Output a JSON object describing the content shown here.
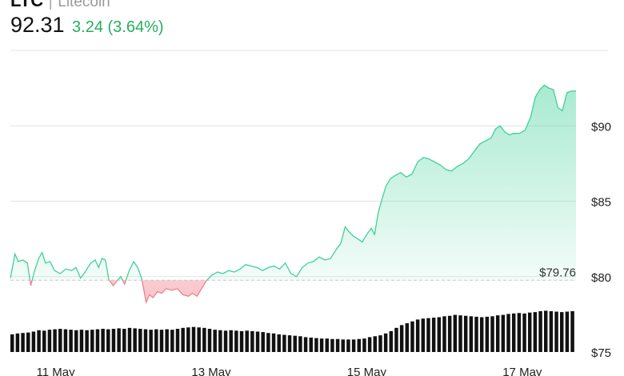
{
  "header": {
    "symbol": "LTC",
    "separator": "|",
    "name": "Litecoin",
    "price": "92.31",
    "change": "3.24 (3.64%)"
  },
  "colors": {
    "up": "#3fd199",
    "down": "#f0808a",
    "grid": "#e3e3e3",
    "volume": "#111111",
    "change_text": "#27ae60"
  },
  "chart_data": {
    "type": "area",
    "reference_value": 79.76,
    "reference_label": "$79.76",
    "ylim": [
      75,
      95
    ],
    "yticks": [
      {
        "value": 75,
        "label": "$75"
      },
      {
        "value": 80,
        "label": "$80"
      },
      {
        "value": 85,
        "label": "$85"
      },
      {
        "value": 90,
        "label": "$90"
      }
    ],
    "xticks": [
      {
        "t": 0.08,
        "label": "11 May"
      },
      {
        "t": 0.355,
        "label": "13 May"
      },
      {
        "t": 0.63,
        "label": "15 May"
      },
      {
        "t": 0.905,
        "label": "17 May"
      }
    ],
    "price_series": [
      [
        0.0,
        79.9
      ],
      [
        0.008,
        81.5
      ],
      [
        0.014,
        81.0
      ],
      [
        0.022,
        81.1
      ],
      [
        0.03,
        80.9
      ],
      [
        0.036,
        79.4
      ],
      [
        0.042,
        80.3
      ],
      [
        0.05,
        81.2
      ],
      [
        0.056,
        81.6
      ],
      [
        0.062,
        80.9
      ],
      [
        0.07,
        81.0
      ],
      [
        0.078,
        80.4
      ],
      [
        0.088,
        80.2
      ],
      [
        0.098,
        80.5
      ],
      [
        0.108,
        80.4
      ],
      [
        0.116,
        80.6
      ],
      [
        0.124,
        79.9
      ],
      [
        0.132,
        80.3
      ],
      [
        0.142,
        80.9
      ],
      [
        0.15,
        81.1
      ],
      [
        0.156,
        80.6
      ],
      [
        0.162,
        81.2
      ],
      [
        0.168,
        81.1
      ],
      [
        0.174,
        79.8
      ],
      [
        0.182,
        79.4
      ],
      [
        0.188,
        79.7
      ],
      [
        0.195,
        80.0
      ],
      [
        0.202,
        79.5
      ],
      [
        0.21,
        80.4
      ],
      [
        0.218,
        81.0
      ],
      [
        0.225,
        80.6
      ],
      [
        0.232,
        79.9
      ],
      [
        0.24,
        78.3
      ],
      [
        0.246,
        78.8
      ],
      [
        0.252,
        78.6
      ],
      [
        0.26,
        79.0
      ],
      [
        0.268,
        78.9
      ],
      [
        0.275,
        79.2
      ],
      [
        0.285,
        79.1
      ],
      [
        0.295,
        79.2
      ],
      [
        0.305,
        78.8
      ],
      [
        0.315,
        78.7
      ],
      [
        0.322,
        78.9
      ],
      [
        0.33,
        78.7
      ],
      [
        0.338,
        79.2
      ],
      [
        0.346,
        79.7
      ],
      [
        0.356,
        80.1
      ],
      [
        0.366,
        80.3
      ],
      [
        0.376,
        80.2
      ],
      [
        0.386,
        80.4
      ],
      [
        0.396,
        80.3
      ],
      [
        0.406,
        80.5
      ],
      [
        0.416,
        80.8
      ],
      [
        0.426,
        80.7
      ],
      [
        0.436,
        80.6
      ],
      [
        0.446,
        80.4
      ],
      [
        0.456,
        80.6
      ],
      [
        0.466,
        80.7
      ],
      [
        0.476,
        80.5
      ],
      [
        0.486,
        80.9
      ],
      [
        0.496,
        80.2
      ],
      [
        0.506,
        80.0
      ],
      [
        0.516,
        80.6
      ],
      [
        0.526,
        80.9
      ],
      [
        0.536,
        81.0
      ],
      [
        0.546,
        81.3
      ],
      [
        0.556,
        81.1
      ],
      [
        0.566,
        81.2
      ],
      [
        0.576,
        81.8
      ],
      [
        0.584,
        82.2
      ],
      [
        0.592,
        83.3
      ],
      [
        0.598,
        83.0
      ],
      [
        0.606,
        82.7
      ],
      [
        0.614,
        82.5
      ],
      [
        0.622,
        82.3
      ],
      [
        0.63,
        82.8
      ],
      [
        0.638,
        83.2
      ],
      [
        0.644,
        82.8
      ],
      [
        0.65,
        84.2
      ],
      [
        0.656,
        85.0
      ],
      [
        0.664,
        86.0
      ],
      [
        0.672,
        86.5
      ],
      [
        0.68,
        86.7
      ],
      [
        0.69,
        86.9
      ],
      [
        0.7,
        86.6
      ],
      [
        0.71,
        86.8
      ],
      [
        0.72,
        87.6
      ],
      [
        0.73,
        87.9
      ],
      [
        0.74,
        87.8
      ],
      [
        0.75,
        87.6
      ],
      [
        0.76,
        87.4
      ],
      [
        0.77,
        87.1
      ],
      [
        0.78,
        87.0
      ],
      [
        0.79,
        87.3
      ],
      [
        0.8,
        87.5
      ],
      [
        0.81,
        87.8
      ],
      [
        0.82,
        88.3
      ],
      [
        0.83,
        88.8
      ],
      [
        0.84,
        89.0
      ],
      [
        0.85,
        89.2
      ],
      [
        0.858,
        89.8
      ],
      [
        0.866,
        90.0
      ],
      [
        0.874,
        89.6
      ],
      [
        0.882,
        89.4
      ],
      [
        0.89,
        89.5
      ],
      [
        0.9,
        89.5
      ],
      [
        0.91,
        89.7
      ],
      [
        0.92,
        90.6
      ],
      [
        0.928,
        91.9
      ],
      [
        0.936,
        92.4
      ],
      [
        0.944,
        92.7
      ],
      [
        0.952,
        92.5
      ],
      [
        0.96,
        92.4
      ],
      [
        0.968,
        91.2
      ],
      [
        0.976,
        91.0
      ],
      [
        0.984,
        92.2
      ],
      [
        0.992,
        92.3
      ],
      [
        1.0,
        92.31
      ]
    ],
    "volume_relative": [
      0.38,
      0.4,
      0.41,
      0.42,
      0.44,
      0.47,
      0.46,
      0.48,
      0.49,
      0.5,
      0.49,
      0.48,
      0.47,
      0.48,
      0.47,
      0.48,
      0.49,
      0.5,
      0.49,
      0.5,
      0.51,
      0.5,
      0.52,
      0.51,
      0.5,
      0.49,
      0.48,
      0.49,
      0.48,
      0.49,
      0.48,
      0.5,
      0.52,
      0.53,
      0.54,
      0.53,
      0.52,
      0.5,
      0.48,
      0.47,
      0.46,
      0.47,
      0.46,
      0.45,
      0.46,
      0.45,
      0.44,
      0.43,
      0.41,
      0.4,
      0.38,
      0.37,
      0.36,
      0.35,
      0.34,
      0.32,
      0.31,
      0.3,
      0.29,
      0.29,
      0.28,
      0.28,
      0.27,
      0.27,
      0.27,
      0.28,
      0.29,
      0.32,
      0.34,
      0.36,
      0.4,
      0.45,
      0.52,
      0.58,
      0.62,
      0.66,
      0.7,
      0.72,
      0.73,
      0.74,
      0.75,
      0.77,
      0.78,
      0.8,
      0.79,
      0.78,
      0.77,
      0.76,
      0.75,
      0.76,
      0.77,
      0.79,
      0.8,
      0.82,
      0.83,
      0.84,
      0.83,
      0.85,
      0.86,
      0.88,
      0.89,
      0.88,
      0.87,
      0.86,
      0.87,
      0.88
    ]
  }
}
